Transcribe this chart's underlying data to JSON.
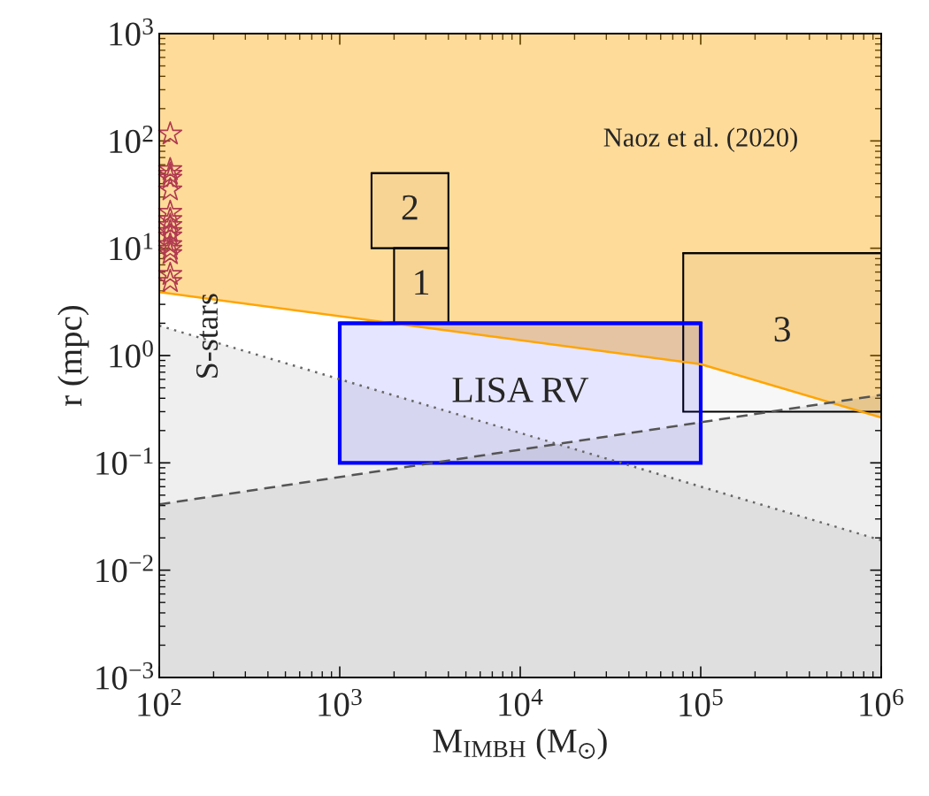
{
  "chart_data": {
    "type": "line",
    "xlabel": "M$_{IMBH}$ (M$_{⊙}$)",
    "ylabel": "r (mpc)",
    "log": "xy",
    "xlim": [
      100,
      1000000
    ],
    "ylim": [
      0.001,
      1000
    ],
    "xticks": [
      {
        "value": 100,
        "label": "10$^{2}$"
      },
      {
        "value": 1000,
        "label": "10$^{3}$"
      },
      {
        "value": 10000,
        "label": "10$^{4}$"
      },
      {
        "value": 100000,
        "label": "10$^{5}$"
      },
      {
        "value": 1000000,
        "label": "10$^{6}$"
      }
    ],
    "yticks": [
      {
        "value": 0.001,
        "label": "10$^{−3}$"
      },
      {
        "value": 0.01,
        "label": "10$^{−2}$"
      },
      {
        "value": 0.1,
        "label": "10$^{−1}$"
      },
      {
        "value": 1,
        "label": "10$^{0}$"
      },
      {
        "value": 10,
        "label": "10$^{1}$"
      },
      {
        "value": 100,
        "label": "10$^{2}$"
      },
      {
        "value": 1000,
        "label": "10$^{3}$"
      }
    ],
    "grid": false,
    "annotations": [
      "Naoz et al. (2020)",
      "S-stars"
    ],
    "series": [
      {
        "x": [
          100,
          100000,
          1000000
        ],
        "values": [
          3.9,
          0.83,
          0.265
        ],
        "lower": [
          3.9,
          0.83,
          0.265
        ],
        "upper": [
          1000,
          1000,
          1000
        ],
        "color": "#ffa500",
        "line_style": "solid"
      },
      {
        "x": [
          100,
          1000000
        ],
        "values": [
          1.9,
          0.019
        ],
        "lower": [
          0.001,
          0.001
        ],
        "upper": [
          1.9,
          0.019
        ],
        "color": "#666666",
        "line_style": "dotted"
      },
      {
        "x": [
          100,
          1000000
        ],
        "values": [
          0.041,
          0.43
        ],
        "lower": [
          0.001,
          0.001
        ],
        "upper": [
          0.041,
          0.43
        ],
        "color": "#555555",
        "line_style": "dashed"
      },
      {
        "name": "1",
        "x": [
          2000,
          4000
        ],
        "values": [
          10,
          10
        ],
        "lower": [
          2,
          2
        ],
        "upper": [
          10,
          10
        ],
        "color": "#000000",
        "line_style": "solid"
      },
      {
        "name": "2",
        "x": [
          1500,
          4000
        ],
        "values": [
          50,
          50
        ],
        "lower": [
          10,
          10
        ],
        "upper": [
          50,
          50
        ],
        "color": "#000000",
        "line_style": "solid"
      },
      {
        "name": "3",
        "x": [
          80000,
          1000000
        ],
        "values": [
          9,
          9
        ],
        "lower": [
          0.3,
          0.3
        ],
        "upper": [
          9,
          9
        ],
        "color": "#000000",
        "line_style": "solid"
      },
      {
        "name": "LISA RV",
        "x": [
          1000,
          100000
        ],
        "values": [
          2,
          2
        ],
        "lower": [
          0.1,
          0.1
        ],
        "upper": [
          2,
          2
        ],
        "color": "#0000ff",
        "line_style": "solid"
      },
      {
        "type": "scatter",
        "marker": "star",
        "color": "#b03a50",
        "x": [
          115,
          115,
          115,
          115,
          115,
          115,
          115,
          115,
          115,
          115,
          115,
          115,
          115,
          115,
          115
        ],
        "values": [
          116,
          54,
          49,
          45,
          35,
          21.6,
          18.5,
          16.3,
          14.3,
          13,
          10.8,
          9.8,
          8.9,
          5.7,
          4.9
        ]
      }
    ]
  }
}
